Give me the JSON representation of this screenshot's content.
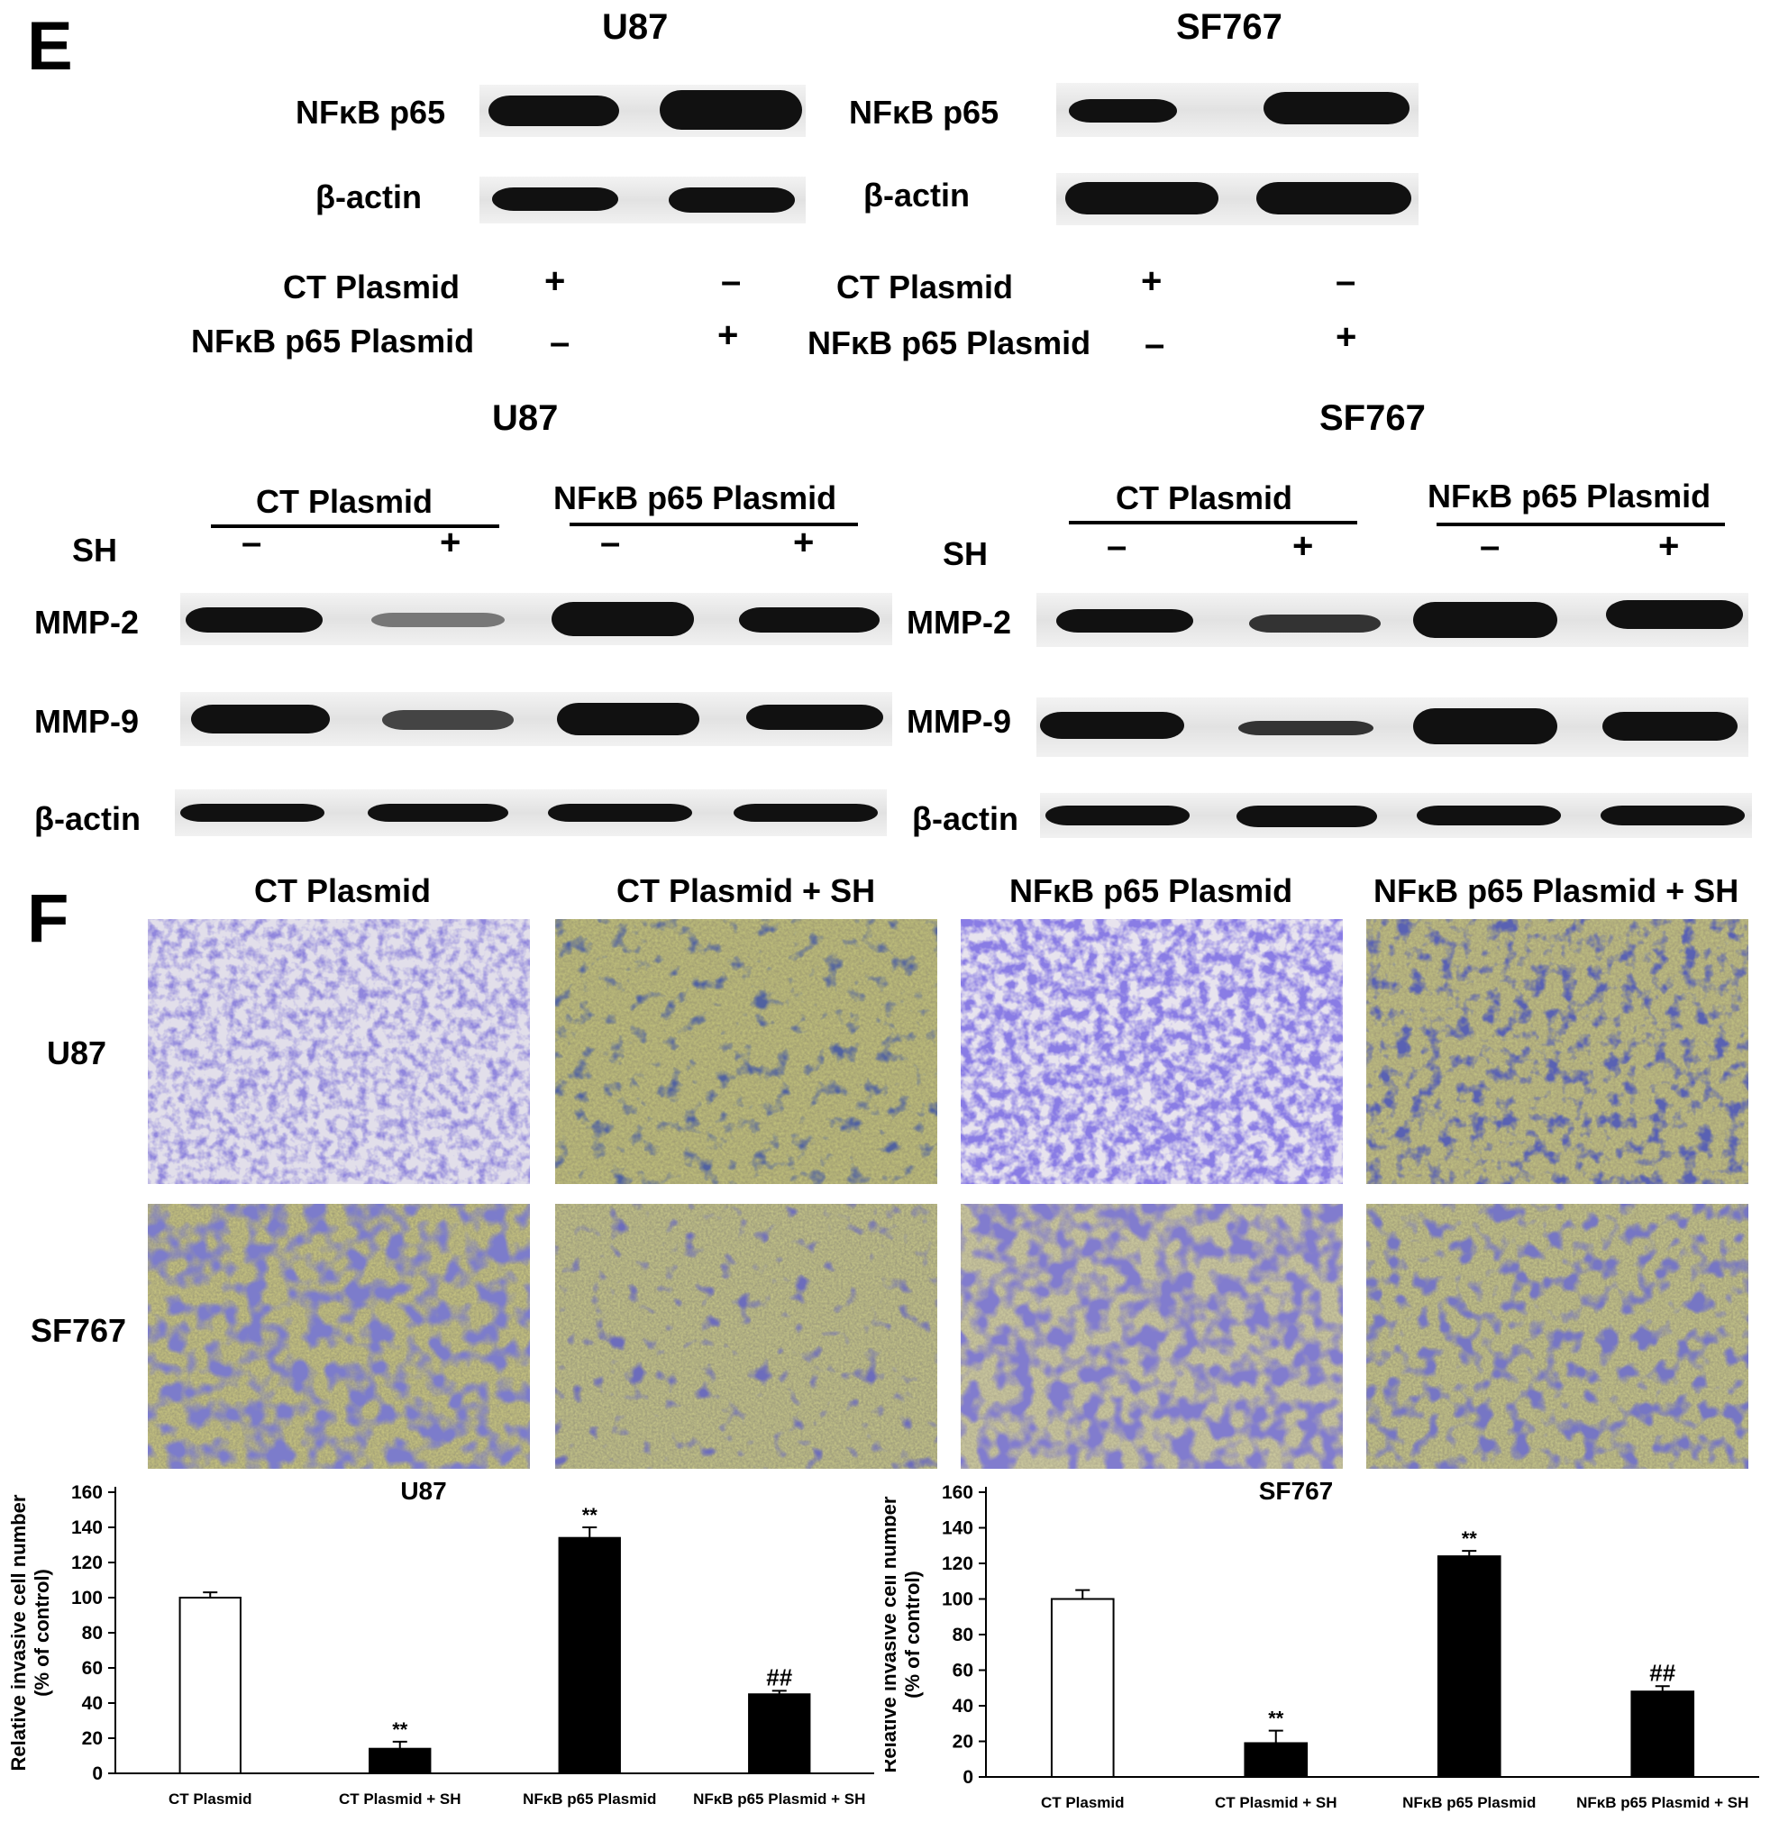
{
  "panel_e": {
    "letter": "E",
    "top_left_title": "U87",
    "top_right_title": "SF767",
    "protein_nfkb": "NFκB p65",
    "protein_actin": "β-actin",
    "ct_plasmid": "CT Plasmid",
    "nfkb_plasmid": "NFκB p65 Plasmid",
    "plus": "+",
    "minus": "–",
    "bottom_left_title": "U87",
    "bottom_right_title": "SF767",
    "sh_label": "SH",
    "mmp2": "MMP-2",
    "mmp9": "MMP-9"
  },
  "panel_f": {
    "letter": "F",
    "columns": [
      "CT Plasmid",
      "CT Plasmid + SH",
      "NFκB p65 Plasmid",
      "NFκB p65 Plasmid + SH"
    ],
    "rows": [
      "U87",
      "SF767"
    ]
  },
  "chart_data": [
    {
      "type": "bar",
      "title": "U87",
      "ylabel": "Relative invasive cell number (% of control)",
      "categories": [
        "CT Plasmid",
        "CT Plasmid + SH",
        "NFκB p65 Plasmid",
        "NFκB p65 Plasmid + SH"
      ],
      "values": [
        100,
        14,
        134,
        45
      ],
      "errors": [
        3,
        4,
        6,
        2
      ],
      "annotations": [
        "",
        "**",
        "**",
        "##"
      ],
      "bar_colors": [
        "#ffffff",
        "#000000",
        "#000000",
        "#000000"
      ],
      "ylim": [
        0,
        160
      ],
      "yticks": [
        0,
        20,
        40,
        60,
        80,
        100,
        120,
        140,
        160
      ]
    },
    {
      "type": "bar",
      "title": "SF767",
      "ylabel": "Relative invasive cell number (% of control)",
      "categories": [
        "CT Plasmid",
        "CT Plasmid + SH",
        "NFκB p65 Plasmid",
        "NFκB p65 Plasmid + SH"
      ],
      "values": [
        100,
        19,
        124,
        48
      ],
      "errors": [
        5,
        7,
        3,
        3
      ],
      "annotations": [
        "",
        "**",
        "**",
        "##"
      ],
      "bar_colors": [
        "#ffffff",
        "#000000",
        "#000000",
        "#000000"
      ],
      "ylim": [
        0,
        160
      ],
      "yticks": [
        0,
        20,
        40,
        60,
        80,
        100,
        120,
        140,
        160
      ]
    }
  ]
}
